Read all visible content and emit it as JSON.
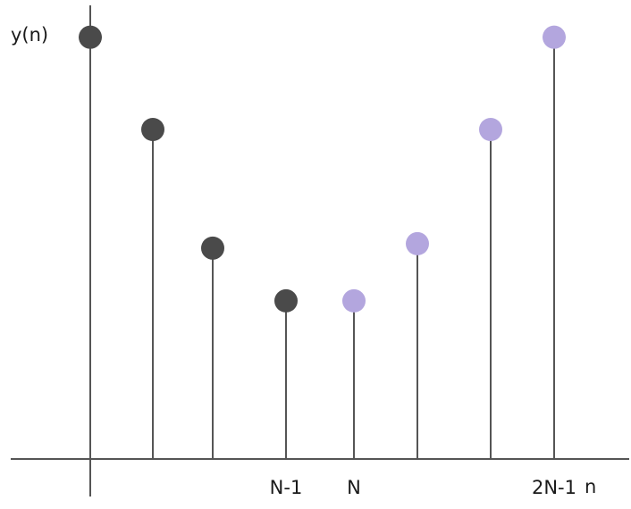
{
  "chart_data": {
    "type": "stem",
    "title": "",
    "ylabel": "y(n)",
    "xlabel": "n",
    "grid": false,
    "legend": "none",
    "x_tick_labels": [
      {
        "index": 3,
        "label": "N-1"
      },
      {
        "index": 4,
        "label": "N"
      },
      {
        "index": 7,
        "label": "2N-1"
      }
    ],
    "colors": {
      "axis": "#555555",
      "first_half_marker": "#4a4a4a",
      "second_half_marker": "#b3a6de"
    },
    "series": [
      {
        "x": [
          0,
          1,
          2,
          3
        ],
        "values": [
          0.96,
          0.75,
          0.48,
          0.36
        ],
        "color": "#4a4a4a"
      },
      {
        "x": [
          4,
          5,
          6,
          7
        ],
        "values": [
          0.36,
          0.49,
          0.75,
          0.96
        ],
        "color": "#b3a6de"
      }
    ],
    "ylim": [
      0,
      1.0
    ]
  }
}
